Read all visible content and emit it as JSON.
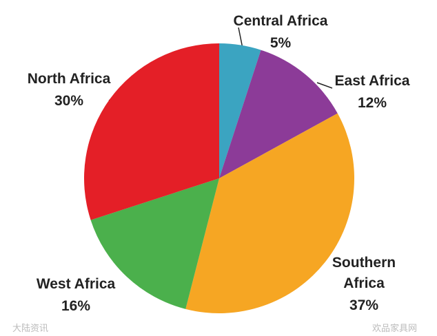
{
  "chart_data": {
    "type": "pie",
    "categories": [
      "Central Africa",
      "East Africa",
      "Southern Africa",
      "West Africa",
      "North Africa"
    ],
    "values": [
      5,
      12,
      37,
      16,
      30
    ],
    "value_labels": [
      "5%",
      "12%",
      "37%",
      "16%",
      "30%"
    ],
    "colors": [
      "#3ba4c1",
      "#8c3b98",
      "#f6a623",
      "#4bb04c",
      "#e41f27"
    ]
  },
  "watermarks": [
    "大陆资讯",
    "欢品家具网"
  ]
}
